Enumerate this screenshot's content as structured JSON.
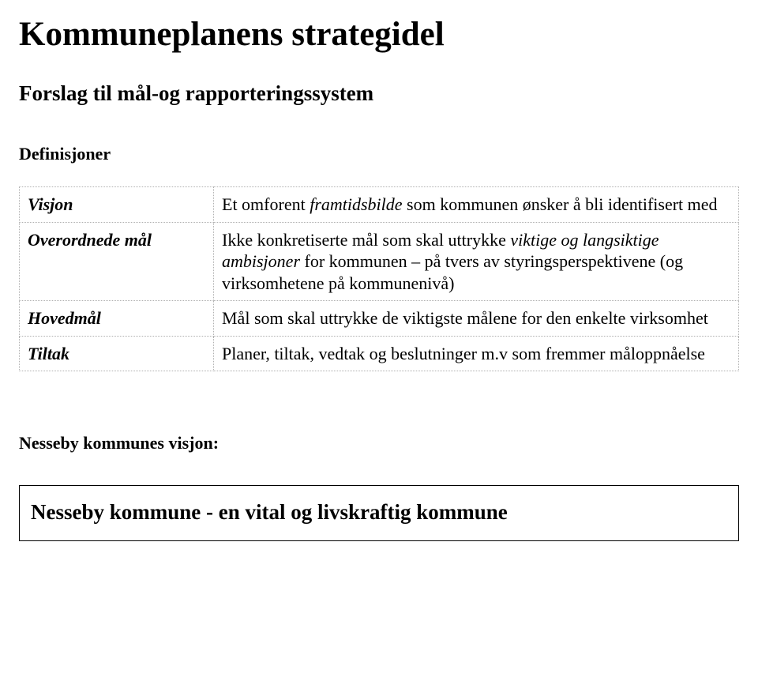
{
  "title": "Kommuneplanens strategidel",
  "subtitle": "Forslag til mål-og rapporteringssystem",
  "definitions_label": "Definisjoner",
  "definitions": {
    "visjon": {
      "term": "Visjon",
      "desc_pre": "Et omforent ",
      "desc_italic": "framtidsbilde",
      "desc_post": " som kommunen ønsker å bli identifisert med"
    },
    "overordnede": {
      "term": "Overordnede mål",
      "desc_pre": "Ikke konkretiserte mål  som skal uttrykke ",
      "desc_italic": "viktige og langsiktige ambisjoner",
      "desc_post": " for kommunen – på tvers av styringsperspektivene (og virksomhetene på kommunenivå)"
    },
    "hovedmal": {
      "term": "Hovedmål",
      "desc": "Mål som skal uttrykke de viktigste målene for den enkelte virksomhet"
    },
    "tiltak": {
      "term": "Tiltak",
      "desc": "Planer, tiltak, vedtak og beslutninger m.v som fremmer måloppnåelse"
    }
  },
  "vision_intro": "Nesseby kommunes visjon:",
  "vision_text": "Nesseby kommune - en vital og livskraftig kommune"
}
